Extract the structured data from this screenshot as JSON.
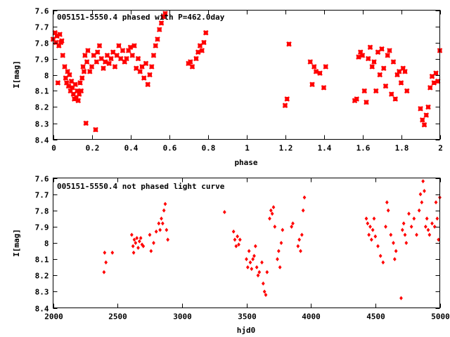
{
  "chart_data": [
    {
      "type": "scatter",
      "title": "005151-5550.4 phased with P=462.0day",
      "xlabel": "phase",
      "ylabel": "I[mag]",
      "xlim": [
        0,
        2
      ],
      "ylim": [
        8.4,
        7.6
      ],
      "y_inverted": true,
      "grid": false,
      "x_ticks": [
        0,
        0.2,
        0.4,
        0.6,
        0.8,
        1,
        1.2,
        1.4,
        1.6,
        1.8,
        2
      ],
      "x_tick_labels": [
        "0",
        "0.2",
        "0.4",
        "0.6",
        "0.8",
        "1",
        "1.2",
        "1.4",
        "1.6",
        "1.8",
        "2"
      ],
      "y_ticks": [
        7.6,
        7.7,
        7.8,
        7.9,
        8.0,
        8.1,
        8.2,
        8.3,
        8.4
      ],
      "y_tick_labels": [
        "7.6",
        "7.7",
        "7.8",
        "7.9",
        "8",
        "8.1",
        "8.2",
        "8.3",
        "8.4"
      ],
      "marker": "cross",
      "color": "#ff0000",
      "series": [
        {
          "x": [
            0.0,
            0.01,
            0.015,
            0.02,
            0.025,
            0.03,
            0.035,
            0.04,
            0.045,
            0.05,
            0.06,
            0.065,
            0.07,
            0.075,
            0.08,
            0.085,
            0.09,
            0.095,
            0.1,
            0.105,
            0.11,
            0.115,
            0.12,
            0.125,
            0.13,
            0.135,
            0.14,
            0.145,
            0.15,
            0.155,
            0.16,
            0.165,
            0.17,
            0.175,
            0.18,
            0.19,
            0.2,
            0.21,
            0.22,
            0.225,
            0.23,
            0.24,
            0.25,
            0.26,
            0.27,
            0.28,
            0.29,
            0.3,
            0.31,
            0.32,
            0.33,
            0.34,
            0.35,
            0.36,
            0.37,
            0.38,
            0.39,
            0.4,
            0.41,
            0.42,
            0.43,
            0.44,
            0.45,
            0.46,
            0.47,
            0.48,
            0.49,
            0.5,
            0.51,
            0.52,
            0.53,
            0.54,
            0.55,
            0.56,
            0.57,
            0.58,
            0.7,
            0.71,
            0.72,
            0.74,
            0.75,
            0.76,
            0.77,
            0.78,
            0.79,
            1.2,
            1.21,
            1.22,
            1.33,
            1.34,
            1.35,
            1.36,
            1.38,
            1.4,
            1.41,
            1.56,
            1.57,
            1.58,
            1.59,
            1.6,
            1.61,
            1.62,
            1.63,
            1.64,
            1.65,
            1.66,
            1.67,
            1.68,
            1.69,
            1.7,
            1.71,
            1.72,
            1.73,
            1.74,
            1.75,
            1.76,
            1.77,
            1.78,
            1.79,
            1.8,
            1.81,
            1.82,
            1.83,
            1.9,
            1.91,
            1.92,
            1.93,
            1.94,
            1.95,
            1.96,
            1.97,
            1.98,
            1.99,
            2.0
          ],
          "y": [
            7.78,
            7.74,
            7.8,
            7.76,
            8.05,
            7.82,
            7.75,
            7.8,
            7.79,
            7.88,
            7.95,
            8.02,
            8.05,
            7.98,
            8.07,
            8.0,
            8.1,
            8.04,
            8.08,
            8.12,
            8.15,
            8.06,
            8.14,
            8.1,
            8.16,
            8.12,
            8.05,
            8.1,
            8.02,
            7.95,
            7.98,
            7.88,
            8.3,
            7.92,
            7.85,
            7.98,
            7.95,
            7.88,
            8.34,
            7.92,
            7.86,
            7.82,
            7.9,
            7.96,
            7.92,
            7.88,
            7.93,
            7.9,
            7.86,
            7.95,
            7.88,
            7.82,
            7.9,
            7.85,
            7.92,
            7.9,
            7.85,
            7.83,
            7.88,
            7.82,
            7.96,
            7.9,
            7.98,
            7.95,
            8.02,
            7.93,
            8.06,
            8.0,
            7.95,
            7.88,
            7.82,
            7.78,
            7.72,
            7.68,
            7.64,
            7.62,
            7.93,
            7.92,
            7.95,
            7.9,
            7.86,
            7.82,
            7.85,
            7.8,
            7.74,
            8.19,
            8.15,
            7.81,
            7.92,
            8.06,
            7.95,
            7.98,
            7.99,
            8.08,
            7.95,
            8.16,
            8.15,
            7.89,
            7.86,
            7.88,
            8.1,
            8.17,
            7.9,
            7.83,
            7.95,
            7.92,
            8.1,
            7.86,
            8.0,
            7.84,
            7.96,
            8.07,
            7.88,
            7.85,
            8.12,
            7.92,
            8.15,
            8.0,
            7.98,
            8.05,
            7.96,
            7.98,
            8.1,
            8.21,
            8.28,
            8.31,
            8.25,
            8.2,
            8.08,
            8.01,
            8.05,
            7.99,
            8.04,
            7.85
          ]
        }
      ]
    },
    {
      "type": "scatter",
      "title": "005151-5550.4 not phased light curve",
      "xlabel": "hjd0",
      "ylabel": "I[mag]",
      "xlim": [
        2000,
        5000
      ],
      "ylim": [
        8.4,
        7.6
      ],
      "y_inverted": true,
      "grid": false,
      "x_ticks": [
        2000,
        2500,
        3000,
        3500,
        4000,
        4500,
        5000
      ],
      "x_tick_labels": [
        "2000",
        "2500",
        "3000",
        "3500",
        "4000",
        "4500",
        "5000"
      ],
      "y_ticks": [
        7.6,
        7.7,
        7.8,
        7.9,
        8.0,
        8.1,
        8.2,
        8.3,
        8.4
      ],
      "y_tick_labels": [
        "7.6",
        "7.7",
        "7.8",
        "7.9",
        "8",
        "8.1",
        "8.2",
        "8.3",
        "8.4"
      ],
      "marker": "diamond",
      "color": "#ff0000",
      "series": [
        {
          "x": [
            2395,
            2400,
            2410,
            2460,
            2610,
            2620,
            2625,
            2630,
            2640,
            2650,
            2660,
            2670,
            2680,
            2690,
            2700,
            2750,
            2760,
            2780,
            2800,
            2820,
            2830,
            2840,
            2850,
            2860,
            2870,
            2880,
            2890,
            3330,
            3400,
            3410,
            3420,
            3430,
            3440,
            3450,
            3500,
            3510,
            3520,
            3530,
            3540,
            3550,
            3560,
            3570,
            3580,
            3590,
            3600,
            3620,
            3630,
            3640,
            3650,
            3660,
            3680,
            3690,
            3700,
            3710,
            3720,
            3740,
            3750,
            3760,
            3770,
            3780,
            3850,
            3860,
            3900,
            3910,
            3920,
            3930,
            3940,
            3950,
            4430,
            4440,
            4450,
            4460,
            4470,
            4480,
            4490,
            4500,
            4520,
            4540,
            4560,
            4580,
            4590,
            4600,
            4620,
            4640,
            4650,
            4660,
            4700,
            4710,
            4720,
            4730,
            4740,
            4760,
            4780,
            4800,
            4820,
            4840,
            4850,
            4860,
            4870,
            4880,
            4890,
            4900,
            4910,
            4920,
            4940,
            4960,
            4970,
            4980,
            4990,
            5000
          ],
          "y": [
            8.18,
            8.06,
            8.12,
            8.06,
            7.95,
            8.02,
            8.06,
            7.98,
            8.0,
            7.97,
            8.03,
            7.99,
            7.97,
            8.01,
            8.02,
            7.95,
            8.05,
            8.0,
            7.93,
            7.88,
            7.92,
            7.85,
            7.88,
            7.8,
            7.76,
            7.92,
            7.98,
            7.81,
            7.93,
            7.98,
            8.02,
            7.96,
            8.01,
            7.98,
            8.1,
            8.15,
            8.05,
            8.12,
            8.16,
            8.1,
            8.08,
            8.02,
            8.15,
            8.2,
            8.18,
            8.12,
            8.25,
            8.3,
            8.32,
            8.18,
            7.85,
            7.8,
            7.82,
            7.78,
            7.9,
            8.1,
            8.05,
            8.15,
            8.0,
            7.92,
            7.9,
            7.88,
            8.02,
            7.98,
            8.05,
            7.95,
            7.8,
            7.72,
            7.85,
            7.88,
            7.95,
            7.9,
            7.98,
            7.92,
            7.85,
            7.96,
            8.02,
            8.08,
            8.12,
            7.9,
            7.75,
            7.8,
            7.95,
            8.0,
            8.1,
            8.05,
            8.34,
            7.92,
            7.88,
            7.95,
            8.0,
            7.82,
            7.9,
            7.85,
            7.95,
            7.8,
            7.7,
            7.75,
            7.62,
            7.68,
            7.9,
            7.85,
            7.92,
            7.95,
            7.88,
            7.9,
            7.75,
            7.85,
            7.98,
            7.72
          ]
        }
      ]
    }
  ]
}
